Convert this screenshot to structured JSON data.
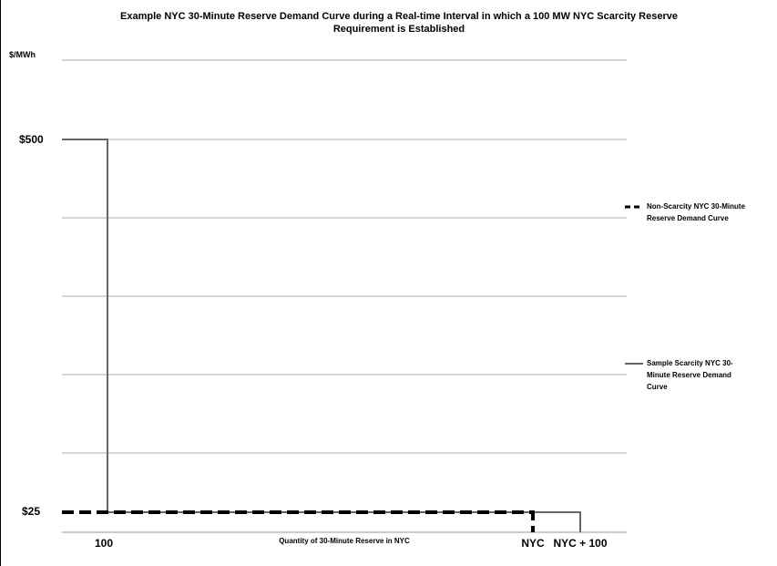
{
  "chart_data": {
    "type": "line",
    "title_lines": [
      "Example NYC 30-Minute Reserve Demand Curve during a Real-time Interval in which a 100 MW NYC Scarcity Reserve",
      "Requirement is Established"
    ],
    "ylabel": "$/MWh",
    "xlabel": "Quantity of 30-Minute Reserve in NYC",
    "y_ticks": [
      {
        "label": "$500",
        "value": 500
      },
      {
        "label": "$25",
        "value": 25
      }
    ],
    "x_ticks": [
      {
        "label": "100",
        "value": 100
      },
      {
        "label": "NYC",
        "value": 1000
      },
      {
        "label": "NYC + 100",
        "value": 1100
      }
    ],
    "x_range": [
      0,
      1300
    ],
    "grid": true,
    "series": [
      {
        "name": "Non-Scarcity NYC 30-Minute Reserve Demand Curve",
        "name_lines": [
          "Non-Scarcity NYC 30-Minute",
          "Reserve Demand Curve"
        ],
        "style": "dashed",
        "color": "#000000",
        "points": [
          [
            0,
            25
          ],
          [
            1000,
            25
          ],
          [
            1000,
            0
          ]
        ]
      },
      {
        "name": "Sample Scarcity NYC 30-Minute Reserve Demand Curve",
        "name_lines": [
          "Sample Scarcity NYC 30-",
          "Minute Reserve Demand",
          "Curve"
        ],
        "style": "solid",
        "color": "#666666",
        "points": [
          [
            0,
            500
          ],
          [
            100,
            500
          ],
          [
            100,
            25
          ],
          [
            1100,
            25
          ],
          [
            1100,
            0
          ]
        ]
      }
    ],
    "legend_position": "right"
  }
}
